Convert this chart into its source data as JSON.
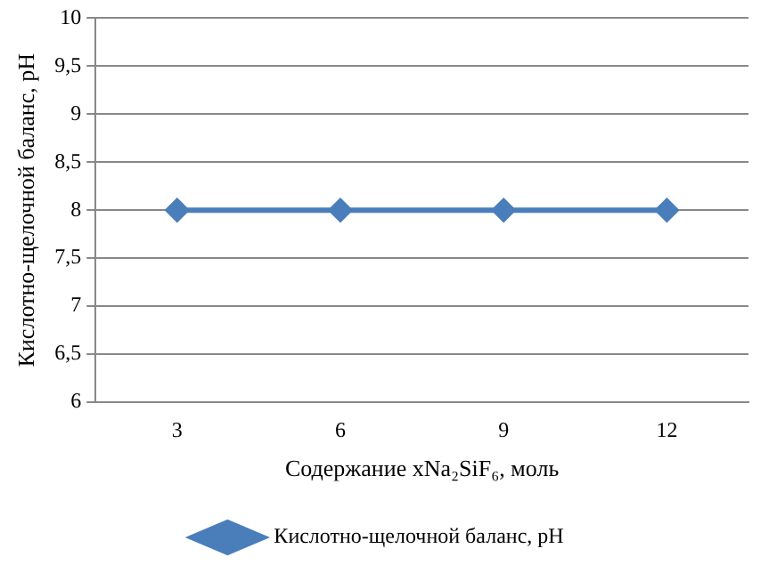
{
  "chart_data": {
    "type": "line",
    "xlabel": "Содержание xNa₂SiF₆, моль",
    "ylabel": "Кислотно-щелочной баланс, pH",
    "categories": [
      "3",
      "6",
      "9",
      "12"
    ],
    "series": [
      {
        "name": "Кислотно-щелочной баланс, pH",
        "color": "#4a7ebb",
        "values": [
          8,
          8,
          8,
          8
        ]
      }
    ],
    "ylim": [
      6,
      10
    ],
    "yticks": [
      6,
      {
        "value": 6.5,
        "label": "6,5"
      },
      7,
      {
        "value": 7.5,
        "label": "7,5"
      },
      8,
      {
        "value": 8.5,
        "label": "8,5"
      },
      9,
      {
        "value": 9.5,
        "label": "9,5"
      },
      10
    ],
    "grid": "y",
    "legend": "bottom",
    "marker": "diamond",
    "line_style": "solid"
  }
}
